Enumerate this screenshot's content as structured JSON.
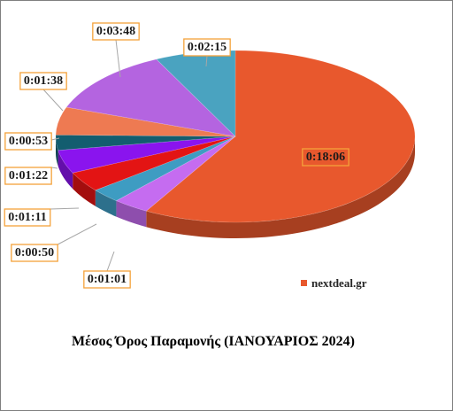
{
  "chart_data": {
    "type": "pie",
    "title": "Μέσος Όρος Παραμονής (ΙΑΝΟΥΑΡΙΟΣ 2024)",
    "legend_position": "bottom-right",
    "label_border_color": "#f4a23a",
    "slices": [
      {
        "label": "0:18:06",
        "seconds": 1086,
        "color": "#e8582d",
        "legend": "nextdeal.gr"
      },
      {
        "label": "0:01:01",
        "seconds": 61,
        "color": "#c56cf0"
      },
      {
        "label": "0:00:50",
        "seconds": 50,
        "color": "#3e9cc2"
      },
      {
        "label": "0:01:11",
        "seconds": 71,
        "color": "#e31414"
      },
      {
        "label": "0:01:22",
        "seconds": 82,
        "color": "#8a14ee"
      },
      {
        "label": "0:00:53",
        "seconds": 53,
        "color": "#135d6f"
      },
      {
        "label": "0:01:38",
        "seconds": 98,
        "color": "#ee7a52"
      },
      {
        "label": "0:03:48",
        "seconds": 228,
        "color": "#b464e0"
      },
      {
        "label": "0:02:15",
        "seconds": 135,
        "color": "#4aa3c0"
      }
    ]
  }
}
